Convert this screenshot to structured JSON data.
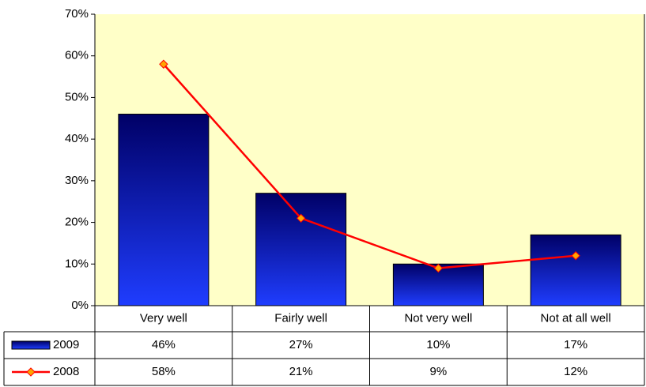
{
  "chart_data": {
    "type": "bar",
    "categories": [
      "Very well",
      "Fairly well",
      "Not very well",
      "Not at all well"
    ],
    "series": [
      {
        "name": "2009",
        "type": "bar",
        "color": "#000080",
        "values": [
          46,
          27,
          10,
          17
        ],
        "value_labels": [
          "46%",
          "27%",
          "10%",
          "17%"
        ]
      },
      {
        "name": "2008",
        "type": "line",
        "color": "#ff0000",
        "marker_color": "#ffa500",
        "values": [
          58,
          21,
          9,
          12
        ],
        "value_labels": [
          "58%",
          "21%",
          "9%",
          "12%"
        ]
      }
    ],
    "ylim": [
      0,
      70
    ],
    "yticks": [
      {
        "value": 0,
        "label": "0%"
      },
      {
        "value": 10,
        "label": "10%"
      },
      {
        "value": 20,
        "label": "20%"
      },
      {
        "value": 30,
        "label": "30%"
      },
      {
        "value": 40,
        "label": "40%"
      },
      {
        "value": 50,
        "label": "50%"
      },
      {
        "value": 60,
        "label": "60%"
      },
      {
        "value": 70,
        "label": "70%"
      }
    ],
    "plot_background": "#ffffc8"
  }
}
